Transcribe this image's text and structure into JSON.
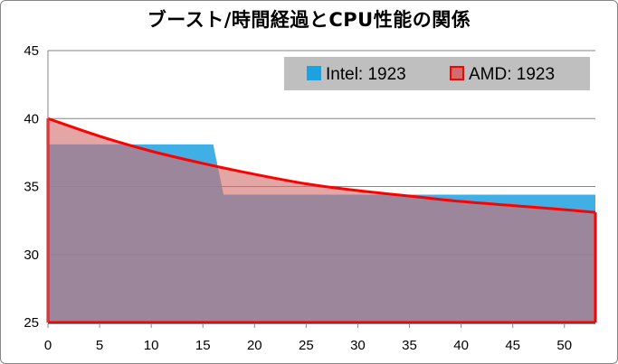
{
  "chart_data": {
    "type": "area",
    "title": "ブースト/時間経過とCPU性能の関係",
    "xlabel": "",
    "ylabel": "",
    "xlim": [
      0,
      53
    ],
    "ylim": [
      25,
      45
    ],
    "x_ticks": [
      0,
      5,
      10,
      15,
      20,
      25,
      30,
      35,
      40,
      45,
      50
    ],
    "y_ticks": [
      25,
      30,
      35,
      40,
      45
    ],
    "grid": "horizontal",
    "legend_position": "top-right",
    "colors": {
      "intel_fill": "#1ea1e1",
      "amd_fill": "#d36d6d",
      "amd_line": "#ff0000",
      "legend_bg": "#bfbfbf"
    },
    "series": [
      {
        "name": "Intel: 1923",
        "kind": "step-area",
        "x": [
          0,
          16,
          17,
          53
        ],
        "y": [
          38.1,
          38.1,
          34.4,
          34.4
        ]
      },
      {
        "name": "AMD: 1923",
        "kind": "curve-area",
        "x": [
          0,
          5,
          10,
          15,
          20,
          25,
          30,
          35,
          40,
          45,
          50,
          53
        ],
        "y": [
          40.0,
          38.7,
          37.6,
          36.7,
          35.9,
          35.2,
          34.7,
          34.3,
          33.9,
          33.6,
          33.3,
          33.1
        ]
      }
    ]
  }
}
